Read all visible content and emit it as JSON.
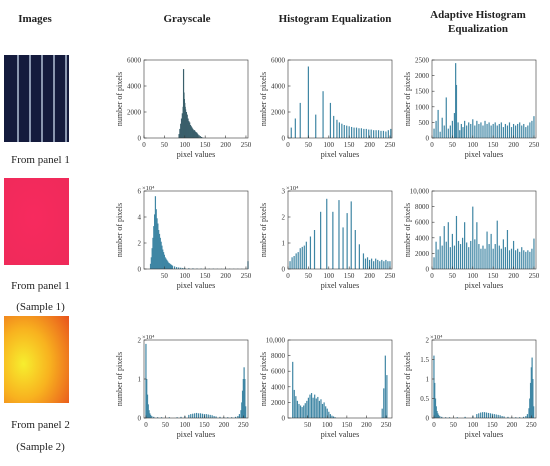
{
  "headers": {
    "images": "Images",
    "grayscale": "Grayscale",
    "he": "Histogram Equalization",
    "ahe": "Adaptive Histogram Equalization"
  },
  "rows": [
    {
      "label": "From panel 1",
      "sublabel": ""
    },
    {
      "label": "From panel 1",
      "sublabel": "(Sample 1)"
    },
    {
      "label": "From panel 2",
      "sublabel": "(Sample 2)"
    }
  ],
  "colors": {
    "bar": "#3f86a4",
    "bar_dark": "#3a5f6b"
  },
  "chart_data": [
    {
      "id": "r1-gray",
      "type": "bar",
      "xlabel": "pixel values",
      "ylabel": "number of pixels",
      "xlim": [
        0,
        255
      ],
      "ylim": [
        0,
        6000
      ],
      "xticks": [
        0,
        50,
        100,
        150,
        200,
        250
      ],
      "yticks": [
        0,
        2000,
        4000,
        6000
      ],
      "ytick_labels": [
        "0",
        "2000",
        "4000",
        "6000"
      ],
      "exponent": "",
      "dark": true,
      "x": [
        86,
        88,
        90,
        92,
        94,
        96,
        97,
        98,
        99,
        100,
        101,
        102,
        104,
        106,
        108,
        110,
        112,
        114,
        116,
        118,
        120,
        122,
        124,
        126,
        128,
        130,
        132,
        135,
        138,
        141,
        144
      ],
      "values": [
        300,
        700,
        1100,
        1500,
        1900,
        2400,
        5300,
        3500,
        3000,
        2700,
        2400,
        2200,
        2000,
        1800,
        1500,
        1300,
        1200,
        1000,
        900,
        800,
        700,
        600,
        600,
        500,
        450,
        400,
        300,
        220,
        150,
        80,
        40
      ]
    },
    {
      "id": "r1-he",
      "type": "bar",
      "xlabel": "pixel values",
      "ylabel": "number of pixels",
      "xlim": [
        0,
        255
      ],
      "ylim": [
        0,
        6000
      ],
      "xticks": [
        0,
        50,
        100,
        150,
        200,
        250
      ],
      "yticks": [
        0,
        2000,
        4000,
        6000
      ],
      "ytick_labels": [
        "0",
        "2000",
        "4000",
        "6000"
      ],
      "exponent": "",
      "x": [
        8,
        18,
        30,
        50,
        68,
        86,
        104,
        112,
        120,
        126,
        132,
        138,
        144,
        150,
        156,
        162,
        168,
        174,
        180,
        186,
        192,
        198,
        204,
        210,
        216,
        222,
        228,
        234,
        240,
        246,
        252
      ],
      "values": [
        800,
        1500,
        2700,
        5500,
        1800,
        3600,
        2700,
        1700,
        1400,
        1200,
        1100,
        1000,
        950,
        900,
        850,
        800,
        800,
        750,
        750,
        700,
        700,
        650,
        650,
        600,
        600,
        600,
        550,
        550,
        500,
        600,
        700
      ]
    },
    {
      "id": "r1-ahe",
      "type": "bar",
      "xlabel": "pixel values",
      "ylabel": "number of pixels",
      "xlim": [
        0,
        255
      ],
      "ylim": [
        0,
        2500
      ],
      "xticks": [
        0,
        50,
        100,
        150,
        200,
        250
      ],
      "yticks": [
        0,
        500,
        1000,
        1500,
        2000,
        2500
      ],
      "ytick_labels": [
        "0",
        "500",
        "1000",
        "1500",
        "2000",
        "2500"
      ],
      "exponent": "",
      "x": [
        5,
        10,
        15,
        20,
        25,
        30,
        35,
        40,
        45,
        50,
        55,
        58,
        60,
        64,
        68,
        72,
        76,
        80,
        85,
        90,
        95,
        100,
        105,
        110,
        115,
        120,
        125,
        130,
        135,
        140,
        145,
        150,
        155,
        160,
        165,
        170,
        175,
        180,
        185,
        190,
        195,
        200,
        205,
        210,
        215,
        220,
        225,
        230,
        235,
        240,
        245,
        250
      ],
      "values": [
        300,
        550,
        900,
        200,
        650,
        400,
        1300,
        300,
        400,
        550,
        800,
        2400,
        1700,
        500,
        250,
        450,
        350,
        550,
        400,
        500,
        450,
        600,
        400,
        550,
        450,
        500,
        400,
        550,
        450,
        500,
        400,
        450,
        500,
        400,
        450,
        500,
        350,
        450,
        400,
        500,
        350,
        450,
        400,
        450,
        500,
        400,
        450,
        350,
        400,
        500,
        550,
        700
      ]
    },
    {
      "id": "r2-gray",
      "type": "bar",
      "xlabel": "pixel values",
      "ylabel": "number of pixels",
      "xlim": [
        0,
        255
      ],
      "ylim": [
        0,
        6
      ],
      "xticks": [
        50,
        100,
        150,
        200,
        250
      ],
      "yticks": [
        0,
        2,
        4,
        6
      ],
      "ytick_labels": [
        "0",
        "2",
        "4",
        "6"
      ],
      "exponent": "×10⁴",
      "x": [
        16,
        18,
        20,
        22,
        24,
        26,
        28,
        30,
        32,
        34,
        36,
        38,
        40,
        42,
        44,
        46,
        48,
        50,
        52,
        54,
        56,
        58,
        60,
        62,
        64,
        66,
        68,
        70,
        75,
        80,
        85,
        90,
        95,
        100,
        110,
        120,
        130,
        140,
        150,
        160,
        170,
        180,
        190,
        200,
        210,
        220,
        230,
        240,
        250,
        255
      ],
      "values": [
        0.4,
        0.9,
        1.6,
        2.4,
        3.3,
        4.2,
        5.6,
        4.6,
        3.9,
        3.5,
        3.0,
        2.7,
        2.4,
        2.1,
        1.8,
        1.5,
        1.3,
        1.1,
        0.9,
        0.8,
        0.7,
        0.6,
        0.5,
        0.45,
        0.4,
        0.35,
        0.3,
        0.25,
        0.2,
        0.15,
        0.12,
        0.1,
        0.08,
        0.08,
        0.06,
        0.05,
        0.04,
        0.04,
        0.03,
        0.03,
        0.03,
        0.02,
        0.02,
        0.02,
        0.02,
        0.02,
        0.02,
        0.02,
        0.02,
        0.6
      ]
    },
    {
      "id": "r2-he",
      "type": "bar",
      "xlabel": "pixel values",
      "ylabel": "number of pixels",
      "xlim": [
        0,
        255
      ],
      "ylim": [
        0,
        3
      ],
      "xticks": [
        0,
        50,
        100,
        150,
        200,
        250
      ],
      "yticks": [
        0,
        1,
        2,
        3
      ],
      "ytick_labels": [
        "0",
        "1",
        "2",
        "3"
      ],
      "exponent": "×10⁴",
      "x": [
        5,
        10,
        15,
        20,
        25,
        30,
        35,
        40,
        45,
        55,
        65,
        80,
        95,
        110,
        125,
        135,
        145,
        155,
        165,
        175,
        185,
        190,
        195,
        200,
        205,
        210,
        215,
        220,
        225,
        230,
        235,
        240,
        245,
        250
      ],
      "values": [
        0.3,
        0.45,
        0.5,
        0.6,
        0.65,
        0.8,
        0.85,
        0.9,
        1.05,
        1.25,
        1.5,
        2.2,
        2.7,
        2.2,
        2.65,
        1.6,
        2.15,
        2.6,
        1.5,
        0.95,
        0.6,
        0.4,
        0.45,
        0.35,
        0.4,
        0.3,
        0.4,
        0.35,
        0.3,
        0.35,
        0.3,
        0.35,
        0.3,
        0.3
      ]
    },
    {
      "id": "r2-ahe",
      "type": "bar",
      "xlabel": "pixel values",
      "ylabel": "number of pixels",
      "xlim": [
        0,
        255
      ],
      "ylim": [
        0,
        10000
      ],
      "xticks": [
        0,
        50,
        100,
        150,
        200,
        250
      ],
      "yticks": [
        0,
        2000,
        4000,
        6000,
        8000,
        10000
      ],
      "ytick_labels": [
        "0",
        "2000",
        "4000",
        "6000",
        "8000",
        "10,000"
      ],
      "exponent": "",
      "x": [
        5,
        10,
        15,
        20,
        25,
        30,
        35,
        40,
        45,
        50,
        55,
        60,
        65,
        70,
        75,
        80,
        85,
        90,
        95,
        100,
        105,
        110,
        115,
        120,
        125,
        130,
        135,
        140,
        145,
        150,
        155,
        160,
        165,
        170,
        175,
        180,
        185,
        190,
        195,
        200,
        205,
        210,
        215,
        220,
        225,
        230,
        235,
        240,
        245,
        250
      ],
      "values": [
        1500,
        3500,
        2500,
        4200,
        3000,
        5500,
        3500,
        6000,
        2800,
        4500,
        3000,
        6800,
        3600,
        3200,
        4000,
        6000,
        3400,
        2800,
        3600,
        8000,
        3800,
        6000,
        3200,
        2600,
        3000,
        2600,
        4800,
        3200,
        4500,
        2600,
        3200,
        6200,
        3000,
        2600,
        3800,
        2800,
        5000,
        2400,
        2600,
        3600,
        2400,
        2600,
        2200,
        2800,
        2400,
        2200,
        2400,
        2200,
        2600,
        3900
      ]
    },
    {
      "id": "r3-gray",
      "type": "bar",
      "xlabel": "pixel values",
      "ylabel": "number of pixels",
      "xlim": [
        -5,
        262
      ],
      "ylim": [
        0,
        2
      ],
      "xticks": [
        0,
        50,
        100,
        150,
        200,
        250
      ],
      "yticks": [
        0,
        1,
        2
      ],
      "ytick_labels": [
        "0",
        "1",
        "2"
      ],
      "exponent": "×10⁴",
      "x": [
        0,
        2,
        4,
        6,
        8,
        10,
        12,
        15,
        20,
        30,
        40,
        60,
        80,
        90,
        100,
        110,
        115,
        120,
        125,
        130,
        135,
        140,
        145,
        150,
        155,
        160,
        165,
        170,
        175,
        180,
        190,
        200,
        210,
        220,
        230,
        236,
        240,
        244,
        246,
        248,
        250,
        252,
        254,
        256
      ],
      "values": [
        1.9,
        1.0,
        0.6,
        0.35,
        0.2,
        0.12,
        0.08,
        0.05,
        0.03,
        0.02,
        0.02,
        0.02,
        0.02,
        0.03,
        0.05,
        0.08,
        0.1,
        0.11,
        0.12,
        0.13,
        0.12,
        0.12,
        0.11,
        0.1,
        0.1,
        0.09,
        0.08,
        0.07,
        0.05,
        0.04,
        0.03,
        0.02,
        0.02,
        0.02,
        0.03,
        0.05,
        0.1,
        0.2,
        0.4,
        0.7,
        1.0,
        1.3,
        1.0,
        0.3
      ]
    },
    {
      "id": "r3-he",
      "type": "bar",
      "xlabel": "pixel values",
      "ylabel": "number of pixels",
      "xlim": [
        0,
        265
      ],
      "ylim": [
        0,
        10000
      ],
      "xticks": [
        50,
        100,
        150,
        200,
        250
      ],
      "yticks": [
        0,
        2000,
        4000,
        6000,
        8000,
        10000
      ],
      "ytick_labels": [
        "0",
        "2000",
        "4000",
        "6000",
        "8000",
        "10,000"
      ],
      "exponent": "",
      "x": [
        12,
        16,
        20,
        24,
        28,
        32,
        36,
        40,
        44,
        48,
        52,
        56,
        60,
        64,
        68,
        72,
        76,
        80,
        84,
        88,
        92,
        96,
        100,
        104,
        108,
        112,
        116,
        120,
        240,
        244,
        248,
        252
      ],
      "values": [
        7200,
        3600,
        2800,
        2200,
        1800,
        1600,
        1400,
        1600,
        1900,
        2200,
        2600,
        3000,
        3200,
        2600,
        3000,
        2500,
        2700,
        2200,
        2400,
        1800,
        2000,
        1500,
        1200,
        800,
        500,
        300,
        200,
        100,
        1200,
        3800,
        8000,
        5500
      ]
    },
    {
      "id": "r3-ahe",
      "type": "bar",
      "xlabel": "pixel values",
      "ylabel": "number of pixels",
      "xlim": [
        -5,
        262
      ],
      "ylim": [
        0,
        2
      ],
      "xticks": [
        0,
        50,
        100,
        150,
        200,
        250
      ],
      "yticks": [
        0,
        0.5,
        1,
        1.5,
        2
      ],
      "ytick_labels": [
        "0",
        "0.5",
        "1",
        "1.5",
        "2"
      ],
      "exponent": "×10⁴",
      "x": [
        0,
        2,
        4,
        6,
        8,
        10,
        12,
        15,
        20,
        30,
        40,
        60,
        80,
        100,
        110,
        115,
        120,
        125,
        130,
        135,
        140,
        145,
        150,
        155,
        160,
        165,
        170,
        175,
        180,
        190,
        200,
        210,
        220,
        230,
        236,
        240,
        244,
        246,
        248,
        250,
        252,
        254,
        256
      ],
      "values": [
        1.6,
        0.9,
        0.5,
        0.3,
        0.18,
        0.12,
        0.08,
        0.05,
        0.03,
        0.02,
        0.02,
        0.02,
        0.03,
        0.06,
        0.1,
        0.12,
        0.14,
        0.15,
        0.15,
        0.14,
        0.13,
        0.12,
        0.11,
        0.1,
        0.09,
        0.08,
        0.07,
        0.05,
        0.04,
        0.03,
        0.02,
        0.02,
        0.02,
        0.03,
        0.05,
        0.1,
        0.25,
        0.5,
        0.9,
        1.3,
        1.55,
        1.0,
        0.3
      ]
    }
  ]
}
